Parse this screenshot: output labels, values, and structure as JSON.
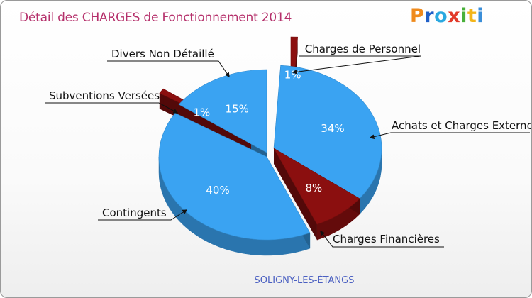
{
  "header": {
    "title": "Détail des CHARGES de Fonctionnement 2014",
    "logo": "Proxiti",
    "logo_letters": [
      "P",
      "r",
      "o",
      "x",
      "i",
      "t",
      "i"
    ]
  },
  "chart_data": {
    "type": "pie",
    "title": "Détail des CHARGES de Fonctionnement 2014",
    "subtitle": "SOLIGNY-LES-ÉTANGS",
    "slices": [
      {
        "label": "Charges de Personnel",
        "percent": 1,
        "percent_label": "1%",
        "color": "#8b0f0f"
      },
      {
        "label": "Achats et Charges Externes",
        "percent": 34,
        "percent_label": "34%",
        "color": "#3aa3f2"
      },
      {
        "label": "Charges Financières",
        "percent": 8,
        "percent_label": "8%",
        "color": "#8b0f0f"
      },
      {
        "label": "Contingents",
        "percent": 40,
        "percent_label": "40%",
        "color": "#3aa3f2"
      },
      {
        "label": "Subventions Versées",
        "percent": 1,
        "percent_label": "1%",
        "color": "#8b0f0f"
      },
      {
        "label": "Divers Non Détaillé",
        "percent": 15,
        "percent_label": "15%",
        "color": "#3aa3f2"
      }
    ]
  }
}
